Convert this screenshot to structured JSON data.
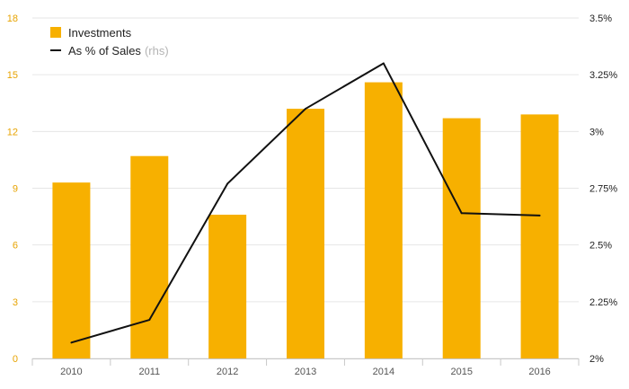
{
  "chart_data": {
    "type": "bar",
    "categories": [
      "2010",
      "2011",
      "2012",
      "2013",
      "2014",
      "2015",
      "2016"
    ],
    "series": [
      {
        "name": "Investments",
        "type": "bar",
        "axis": "left",
        "values": [
          9.3,
          10.7,
          7.6,
          13.2,
          14.6,
          12.7,
          12.9
        ]
      },
      {
        "name": "As % of Sales",
        "type": "line",
        "axis": "right",
        "values": [
          2.07,
          2.17,
          2.77,
          3.1,
          3.3,
          2.64,
          2.63
        ]
      }
    ],
    "legend_note": "(rhs)",
    "y_left": {
      "lim": [
        0,
        18
      ],
      "ticks": [
        "0",
        "3",
        "6",
        "9",
        "12",
        "15",
        "18"
      ]
    },
    "y_right": {
      "lim": [
        2,
        3.5
      ],
      "ticks": [
        "2%",
        "2.25%",
        "2.5%",
        "2.75%",
        "3%",
        "3.25%",
        "3.5%"
      ]
    },
    "grid": true,
    "legend_position": "top-left",
    "colors": {
      "bar": "#f7b000",
      "line": "#111111",
      "left_axis_text": "#e7a300",
      "grid": "#e6e6e6"
    }
  }
}
